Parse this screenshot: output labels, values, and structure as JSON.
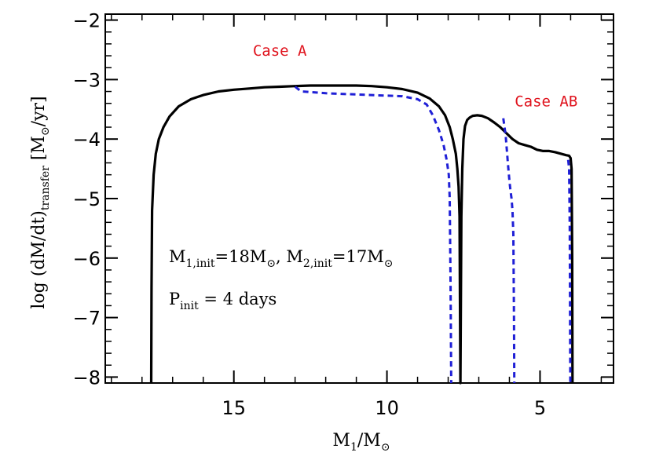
{
  "chart_data": {
    "type": "line",
    "xlabel": {
      "main": "M",
      "sub": "1",
      "tail": "/M",
      "sym": "⊙"
    },
    "ylabel": {
      "prefix": "log (dM/dt)",
      "sub": "transfer",
      "unit_open": " [M",
      "sym": "⊙",
      "unit_close": "/yr]"
    },
    "xlim": [
      19.2,
      2.6
    ],
    "ylim": [
      -8.1,
      -1.9
    ],
    "x_reversed": true,
    "x_ticks": [
      15,
      10,
      5
    ],
    "y_ticks": [
      -2,
      -3,
      -4,
      -5,
      -6,
      -7,
      -8
    ],
    "y_tick_labels": [
      "−2",
      "−3",
      "−4",
      "−5",
      "−6",
      "−7",
      "−8"
    ],
    "grid": false,
    "colors": {
      "solid": "#000000",
      "dashed": "#1f1fd6",
      "annotation": "#e0141e"
    },
    "annotations": [
      {
        "text": "Case A",
        "x": 13.5,
        "y": -2.6
      },
      {
        "text": "Case AB",
        "x": 4.8,
        "y": -3.45
      }
    ],
    "info_lines": [
      {
        "parts": [
          "M",
          "1,init",
          "=18M",
          "⊙",
          ",  M",
          "2,init",
          "=17M",
          "⊙"
        ]
      },
      {
        "parts": [
          "P",
          "init",
          " = 4 days"
        ]
      }
    ],
    "series": [
      {
        "style": "solid",
        "x": [
          17.7,
          17.69,
          17.67,
          17.62,
          17.55,
          17.45,
          17.3,
          17.1,
          16.8,
          16.4,
          16.0,
          15.5,
          15.0,
          14.5,
          14.0,
          13.5,
          13.0,
          12.5,
          12.0,
          11.5,
          11.0,
          10.5,
          10.0,
          9.5,
          9.0,
          8.6,
          8.3,
          8.1,
          7.95,
          7.85,
          7.75,
          7.7,
          7.66,
          7.63,
          7.6,
          7.57,
          7.54,
          7.5,
          7.45,
          7.38,
          7.3,
          7.2,
          7.05,
          6.9,
          6.7,
          6.5,
          6.3,
          6.1,
          5.9,
          5.7,
          5.5,
          5.3,
          5.1,
          4.9,
          4.7,
          4.5,
          4.3,
          4.15,
          4.05,
          4.0,
          3.97,
          3.95,
          3.94
        ],
        "y": [
          -8.1,
          -6.5,
          -5.2,
          -4.6,
          -4.25,
          -4.0,
          -3.8,
          -3.62,
          -3.45,
          -3.33,
          -3.26,
          -3.2,
          -3.17,
          -3.15,
          -3.13,
          -3.12,
          -3.11,
          -3.1,
          -3.1,
          -3.1,
          -3.1,
          -3.11,
          -3.13,
          -3.16,
          -3.22,
          -3.32,
          -3.45,
          -3.6,
          -3.8,
          -4.0,
          -4.25,
          -4.5,
          -4.8,
          -5.3,
          -8.1,
          -5.3,
          -4.5,
          -4.0,
          -3.78,
          -3.68,
          -3.64,
          -3.61,
          -3.6,
          -3.61,
          -3.65,
          -3.72,
          -3.8,
          -3.9,
          -4.0,
          -4.07,
          -4.1,
          -4.13,
          -4.18,
          -4.2,
          -4.2,
          -4.22,
          -4.25,
          -4.27,
          -4.28,
          -4.32,
          -4.5,
          -6.0,
          -8.1
        ]
      },
      {
        "style": "dashed",
        "x": [
          13.0,
          12.8,
          12.5,
          12.0,
          11.5,
          11.0,
          10.5,
          10.0,
          9.5,
          9.0,
          8.7,
          8.5,
          8.3,
          8.15,
          8.05,
          7.98,
          7.95,
          7.92,
          7.9
        ],
        "y": [
          -3.12,
          -3.2,
          -3.21,
          -3.23,
          -3.24,
          -3.25,
          -3.26,
          -3.27,
          -3.28,
          -3.33,
          -3.42,
          -3.6,
          -3.85,
          -4.1,
          -4.35,
          -4.6,
          -5.0,
          -6.5,
          -8.1
        ]
      },
      {
        "style": "dashed",
        "x": [
          6.2,
          6.12,
          6.05,
          6.0,
          5.97,
          5.93,
          5.9,
          5.87,
          5.85,
          5.84
        ],
        "y": [
          -3.65,
          -3.95,
          -4.4,
          -4.7,
          -4.85,
          -5.0,
          -5.2,
          -5.6,
          -7.0,
          -8.1
        ]
      },
      {
        "style": "dashed",
        "x": [
          4.08,
          4.05,
          4.03,
          4.02,
          4.01
        ],
        "y": [
          -4.35,
          -4.5,
          -5.5,
          -7.0,
          -8.1
        ]
      }
    ]
  }
}
